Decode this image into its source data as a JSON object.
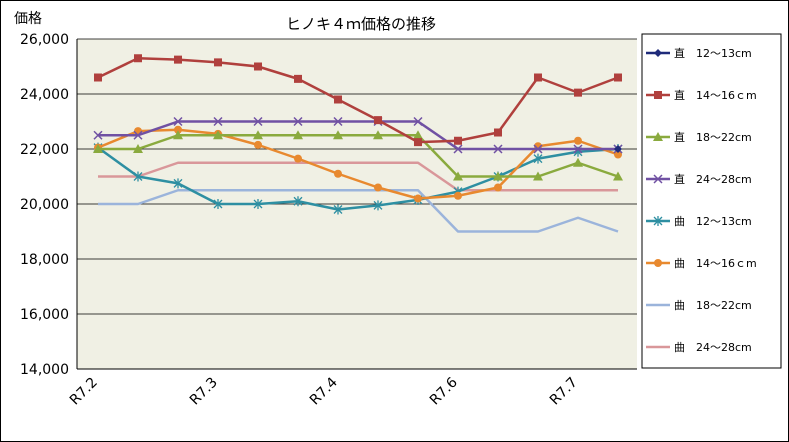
{
  "chart_data": {
    "type": "line",
    "title": "ヒノキ４ｍ価格の推移",
    "ylabel": "価格",
    "xlabel": "",
    "ylim": [
      14000,
      26000
    ],
    "yticks": [
      14000,
      16000,
      18000,
      20000,
      22000,
      24000,
      26000
    ],
    "ytick_labels": [
      "14,000",
      "16,000",
      "18,000",
      "20,000",
      "22,000",
      "24,000",
      "26,000"
    ],
    "x_tick_labels": [
      {
        "label": "R7.2",
        "index": 0
      },
      {
        "label": "R7.3",
        "index": 3
      },
      {
        "label": "R7.4",
        "index": 6
      },
      {
        "label": "R7.6",
        "index": 9
      },
      {
        "label": "R7.7",
        "index": 12
      }
    ],
    "num_points": 14,
    "grid": "horizontal",
    "legend_position": "right",
    "plot_background": "#f0f0e4",
    "series": [
      {
        "name": "直　12～13cm",
        "color": "#1f2b7a",
        "marker": "diamond",
        "values": [
          null,
          null,
          null,
          null,
          null,
          null,
          null,
          null,
          null,
          null,
          null,
          null,
          null,
          22000
        ]
      },
      {
        "name": "直　14～16ｃm",
        "color": "#b0403d",
        "marker": "square",
        "values": [
          24600,
          25300,
          25250,
          25150,
          25000,
          24550,
          23800,
          23050,
          22250,
          22300,
          22600,
          24600,
          24050,
          24600
        ]
      },
      {
        "name": "直　18～22cm",
        "color": "#8aaa3e",
        "marker": "triangle",
        "values": [
          22000,
          22000,
          22500,
          22500,
          22500,
          22500,
          22500,
          22500,
          22500,
          21000,
          21000,
          21000,
          21500,
          21000
        ]
      },
      {
        "name": "直　24～28cm",
        "color": "#7051a3",
        "marker": "x",
        "values": [
          22500,
          22500,
          23000,
          23000,
          23000,
          23000,
          23000,
          23000,
          23000,
          22000,
          22000,
          22000,
          22000,
          22000
        ]
      },
      {
        "name": "曲　12～13cm",
        "color": "#2e8fa2",
        "marker": "star",
        "values": [
          22050,
          21000,
          20750,
          20000,
          20000,
          20100,
          19800,
          19950,
          20150,
          20450,
          21000,
          21650,
          21900,
          22000
        ]
      },
      {
        "name": "曲　14～16ｃm",
        "color": "#e8892f",
        "marker": "circle",
        "values": [
          22050,
          22650,
          22700,
          22550,
          22150,
          21650,
          21100,
          20600,
          20200,
          20300,
          20600,
          22100,
          22300,
          21800
        ]
      },
      {
        "name": "曲　18～22cm",
        "color": "#9bb4db",
        "marker": "none",
        "values": [
          20000,
          20000,
          20500,
          20500,
          20500,
          20500,
          20500,
          20500,
          20500,
          19000,
          19000,
          19000,
          19500,
          19000
        ]
      },
      {
        "name": "曲　24～28cm",
        "color": "#d9979a",
        "marker": "none",
        "values": [
          21000,
          21000,
          21500,
          21500,
          21500,
          21500,
          21500,
          21500,
          21500,
          20500,
          20500,
          20500,
          20500,
          20500
        ]
      }
    ]
  }
}
